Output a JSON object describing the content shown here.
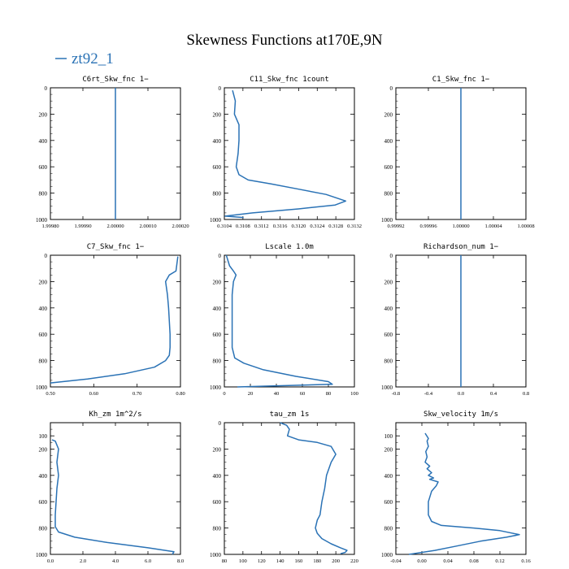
{
  "figure": {
    "title": "Skewness Functions at170E,9N",
    "legend_label": "zt92_1",
    "line_color": "#2a72b5"
  },
  "chart_data": [
    {
      "type": "line",
      "title": "C6rt_Skw_fnc   1−",
      "xlim": [
        1.9998,
        2.0002
      ],
      "xticks": [
        "1.99980",
        "1.99990",
        "2.00000",
        "2.00010",
        "2.00020"
      ],
      "ylim": [
        0,
        1000
      ],
      "yticks": [
        "0",
        "200",
        "400",
        "600",
        "800",
        "1000"
      ],
      "series": [
        {
          "name": "zt92_1",
          "x": [
            2.0,
            2.0
          ],
          "y": [
            0,
            1000
          ]
        }
      ]
    },
    {
      "type": "line",
      "title": "C11_Skw_fnc   1count",
      "xlim": [
        0.31038,
        0.31322
      ],
      "xticks": [
        "0.3104",
        "0.3108",
        "0.3112",
        "0.3116",
        "0.3120",
        "0.3124",
        "0.3128",
        "0.3132"
      ],
      "ylim": [
        0,
        1000
      ],
      "yticks": [
        "0",
        "200",
        "400",
        "600",
        "800",
        "1000"
      ],
      "series": [
        {
          "name": "zt92_1",
          "x": [
            0.31056,
            0.31062,
            0.3106,
            0.3107,
            0.3107,
            0.31068,
            0.31064,
            0.3107,
            0.3109,
            0.3114,
            0.312,
            0.3126,
            0.31303,
            0.3128,
            0.312,
            0.311,
            0.3104,
            0.3108
          ],
          "y": [
            20,
            100,
            200,
            280,
            400,
            500,
            600,
            660,
            700,
            730,
            770,
            810,
            860,
            890,
            920,
            950,
            975,
            985
          ]
        }
      ]
    },
    {
      "type": "line",
      "title": "C1_Skw_fnc   1−",
      "xlim": [
        0.9999,
        1.0001
      ],
      "xticks": [
        "0.99992",
        "0.99996",
        "1.00000",
        "1.00004",
        "1.00008"
      ],
      "ylim": [
        0,
        1000
      ],
      "yticks": [
        "0",
        "200",
        "400",
        "600",
        "800",
        "1000"
      ],
      "series": [
        {
          "name": "zt92_1",
          "x": [
            1.0,
            1.0
          ],
          "y": [
            0,
            1000
          ]
        }
      ]
    },
    {
      "type": "line",
      "title": "C7_Skw_fnc   1−",
      "xlim": [
        0.5,
        0.85
      ],
      "xticks": [
        "0.50",
        "0.60",
        "0.70",
        "0.80"
      ],
      "ylim": [
        0,
        1000
      ],
      "yticks": [
        "0",
        "200",
        "400",
        "600",
        "800",
        "1000"
      ],
      "series": [
        {
          "name": "zt92_1",
          "x": [
            0.843,
            0.838,
            0.82,
            0.81,
            0.815,
            0.818,
            0.82,
            0.822,
            0.822,
            0.82,
            0.81,
            0.78,
            0.7,
            0.6,
            0.5
          ],
          "y": [
            10,
            120,
            150,
            200,
            300,
            400,
            500,
            600,
            700,
            760,
            800,
            850,
            900,
            940,
            970
          ]
        }
      ]
    },
    {
      "type": "line",
      "title": "Lscale   1.0m",
      "xlim": [
        0,
        100
      ],
      "xticks": [
        "0",
        "20",
        "40",
        "60",
        "80",
        "100"
      ],
      "ylim": [
        0,
        1000
      ],
      "yticks": [
        "0",
        "200",
        "400",
        "600",
        "800",
        "1000"
      ],
      "series": [
        {
          "name": "zt92_1",
          "x": [
            1.5,
            4,
            7,
            9,
            7,
            6,
            6,
            6,
            6,
            6,
            8,
            15,
            30,
            55,
            80,
            83,
            10
          ],
          "y": [
            0,
            80,
            120,
            150,
            200,
            300,
            400,
            500,
            600,
            700,
            780,
            820,
            870,
            920,
            960,
            980,
            1000
          ]
        }
      ]
    },
    {
      "type": "line",
      "title": "Richardson_num   1−",
      "xlim": [
        -1.0,
        1.0
      ],
      "xticks": [
        "-0.8",
        "-0.4",
        "0.0",
        "0.4",
        "0.8"
      ],
      "ylim": [
        0,
        1000
      ],
      "yticks": [
        "0",
        "200",
        "400",
        "600",
        "800",
        "1000"
      ],
      "series": [
        {
          "name": "zt92_1",
          "x": [
            0.0,
            0.0
          ],
          "y": [
            0,
            1000
          ]
        }
      ]
    },
    {
      "type": "line",
      "title": "Kh_zm   1m^2/s",
      "xlim": [
        0,
        8.0
      ],
      "xticks": [
        "0.0",
        "2.0",
        "4.0",
        "6.0",
        "8.0"
      ],
      "ylim": [
        0,
        1000
      ],
      "yticks": [
        "100",
        "200",
        "400",
        "600",
        "800",
        "1000"
      ],
      "series": [
        {
          "name": "zt92_1",
          "x": [
            0.1,
            0.3,
            0.5,
            0.4,
            0.5,
            0.4,
            0.35,
            0.3,
            0.3,
            0.5,
            1.5,
            3.5,
            6.0,
            7.6,
            7.5
          ],
          "y": [
            130,
            140,
            200,
            300,
            400,
            500,
            600,
            700,
            790,
            830,
            870,
            910,
            950,
            980,
            1000
          ]
        }
      ]
    },
    {
      "type": "line",
      "title": "tau_zm   1s",
      "xlim": [
        80,
        220
      ],
      "xticks": [
        "80",
        "100",
        "120",
        "140",
        "160",
        "180",
        "200",
        "220"
      ],
      "ylim": [
        0,
        1000
      ],
      "yticks": [
        "0",
        "200",
        "400",
        "600",
        "800",
        "1000"
      ],
      "series": [
        {
          "name": "zt92_1",
          "x": [
            140,
            147,
            150,
            148,
            160,
            180,
            195,
            200,
            195,
            190,
            188,
            185,
            183,
            180,
            178,
            180,
            185,
            195,
            205,
            212,
            210,
            205
          ],
          "y": [
            0,
            20,
            50,
            100,
            130,
            150,
            180,
            240,
            300,
            400,
            500,
            600,
            700,
            740,
            800,
            840,
            880,
            920,
            950,
            970,
            985,
            995
          ]
        }
      ]
    },
    {
      "type": "line",
      "title": "Skw_velocity   1m/s",
      "xlim": [
        -0.04,
        0.16
      ],
      "xticks": [
        "-0.04",
        "0.00",
        "0.04",
        "0.08",
        "0.12",
        "0.16"
      ],
      "ylim": [
        0,
        1000
      ],
      "yticks": [
        "100",
        "200",
        "400",
        "600",
        "800",
        "1000"
      ],
      "series": [
        {
          "name": "zt92_1",
          "x": [
            0.005,
            0.01,
            0.008,
            0.01,
            0.006,
            0.008,
            0.005,
            0.012,
            0.008,
            0.015,
            0.01,
            0.018,
            0.012,
            0.025,
            0.022,
            0.015,
            0.01,
            0.01,
            0.015,
            0.03,
            0.08,
            0.12,
            0.15,
            0.13,
            0.09,
            0.05,
            0.02,
            -0.02
          ],
          "y": [
            80,
            120,
            140,
            180,
            220,
            260,
            300,
            330,
            350,
            380,
            400,
            420,
            430,
            450,
            480,
            520,
            600,
            700,
            750,
            780,
            800,
            820,
            850,
            870,
            900,
            940,
            970,
            1000
          ]
        }
      ]
    }
  ]
}
